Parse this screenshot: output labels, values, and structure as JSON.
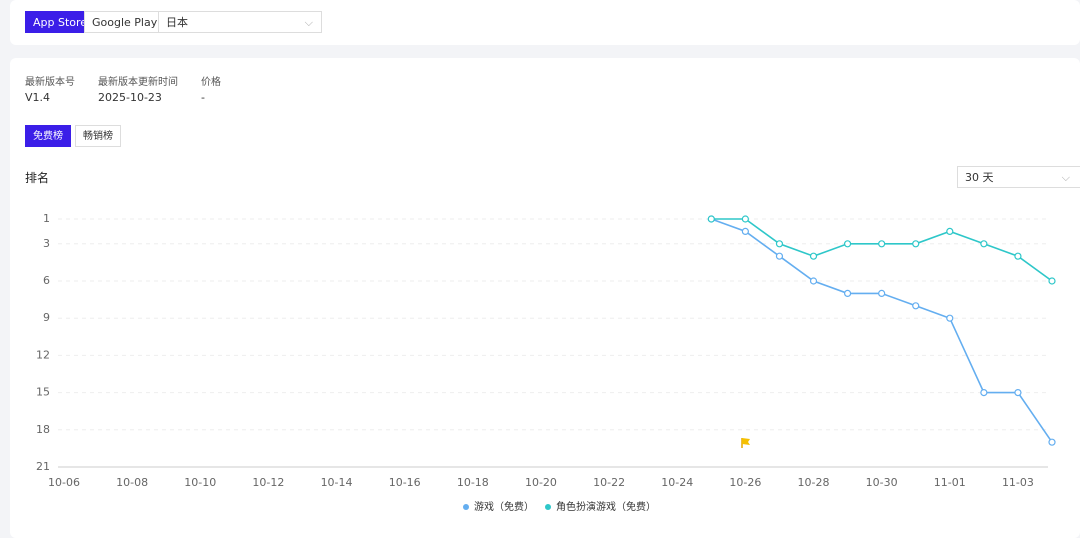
{
  "toolbar": {
    "store_tabs": [
      "App Store",
      "Google Play"
    ],
    "region": "日本"
  },
  "info": {
    "labels": [
      "最新版本号",
      "最新版本更新时间",
      "价格"
    ],
    "values": [
      "V1.4",
      "2025-10-23",
      "-"
    ]
  },
  "rank_tabs": [
    "免费榜",
    "畅销榜"
  ],
  "section_title": "排名",
  "range_select": "30 天",
  "chart_data": {
    "type": "line",
    "categories": [
      "10-06",
      null,
      "10-08",
      null,
      "10-10",
      null,
      "10-12",
      null,
      "10-14",
      null,
      "10-16",
      null,
      "10-18",
      null,
      "10-20",
      null,
      "10-22",
      null,
      "10-24",
      null,
      "10-26",
      null,
      "10-28",
      null,
      "10-30",
      null,
      "11-01",
      null,
      "11-03",
      null
    ],
    "series": [
      {
        "name": "游戏（免费）",
        "color": "#64aef0",
        "values": [
          null,
          null,
          null,
          null,
          null,
          null,
          null,
          null,
          null,
          null,
          null,
          null,
          null,
          null,
          null,
          null,
          null,
          null,
          null,
          1,
          2,
          4,
          6,
          7,
          7,
          8,
          9,
          15,
          15,
          19
        ]
      },
      {
        "name": "角色扮演游戏（免费）",
        "color": "#2ec7c9",
        "values": [
          null,
          null,
          null,
          null,
          null,
          null,
          null,
          null,
          null,
          null,
          null,
          null,
          null,
          null,
          null,
          null,
          null,
          null,
          null,
          1,
          1,
          3,
          4,
          3,
          3,
          3,
          2,
          3,
          4,
          6
        ]
      }
    ],
    "ylim": [
      1,
      21
    ],
    "y_reversed": true,
    "yticks": [
      1,
      3,
      6,
      9,
      12,
      15,
      18,
      21
    ],
    "grid": true
  }
}
